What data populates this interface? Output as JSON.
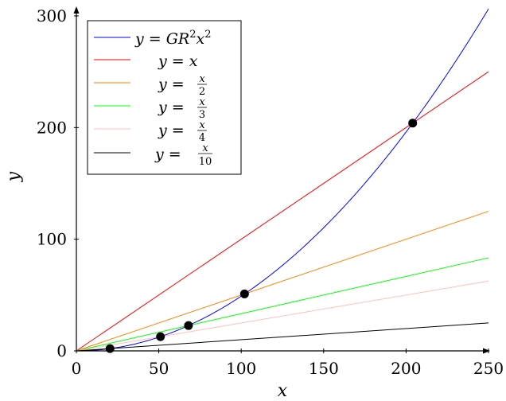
{
  "chart_data": {
    "type": "line",
    "xlabel": "x",
    "ylabel": "y",
    "xlim": [
      0,
      250
    ],
    "ylim": [
      0,
      300
    ],
    "xticks": [
      "0",
      "50",
      "100",
      "150",
      "200",
      "250"
    ],
    "yticks": [
      "0",
      "100",
      "200",
      "300"
    ],
    "grid": false,
    "legend_position": "top-left",
    "series": [
      {
        "name": "y = GR²x²",
        "kind": "curve",
        "coef": 0.0049,
        "color": "#0000ff"
      },
      {
        "name": "y = x",
        "kind": "linear",
        "slope": 1,
        "color": "#ff0000"
      },
      {
        "name": "y = x/2",
        "kind": "linear",
        "slope": 0.5,
        "color": "#ff8000"
      },
      {
        "name": "y = x/3",
        "kind": "linear",
        "slope": 0.3333,
        "color": "#00ff00"
      },
      {
        "name": "y = x/4",
        "kind": "linear",
        "slope": 0.25,
        "color": "#ffbfbf"
      },
      {
        "name": "y = x/10",
        "kind": "linear",
        "slope": 0.1,
        "color": "#000000"
      }
    ],
    "intersections": [
      {
        "x": 20.4,
        "y": 2.04
      },
      {
        "x": 51,
        "y": 12.75
      },
      {
        "x": 68,
        "y": 22.67
      },
      {
        "x": 102,
        "y": 51
      },
      {
        "x": 204,
        "y": 204
      }
    ]
  }
}
